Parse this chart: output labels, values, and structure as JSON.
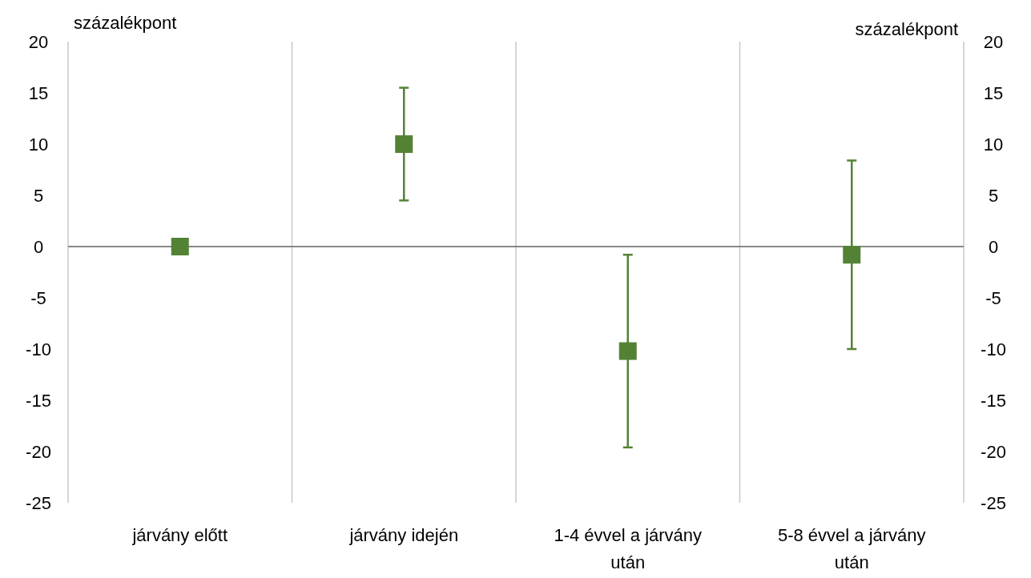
{
  "chart_data": {
    "type": "scatter",
    "ylabel": "százalékpont",
    "y2label": "százalékpont",
    "categories": [
      "járvány előtt",
      "járvány idején",
      "1-4 évvel a járvány után",
      "5-8 évvel a járvány után"
    ],
    "series": [
      {
        "color": "#548235",
        "values": [
          0,
          10,
          -10.2,
          -0.8
        ],
        "errors": [
          null,
          [
            4.5,
            15.5
          ],
          [
            -19.6,
            -0.8
          ],
          [
            -10,
            8.4
          ]
        ]
      }
    ],
    "marker": "square",
    "grid": "x",
    "ylim": [
      -25,
      20
    ],
    "yticks": [
      -25,
      -20,
      -15,
      -10,
      -5,
      0,
      5,
      10,
      15,
      20
    ],
    "y2lim": [
      -25,
      20
    ],
    "y2ticks": [
      -25,
      -20,
      -15,
      -10,
      -5,
      0,
      5,
      10,
      15,
      20
    ]
  }
}
